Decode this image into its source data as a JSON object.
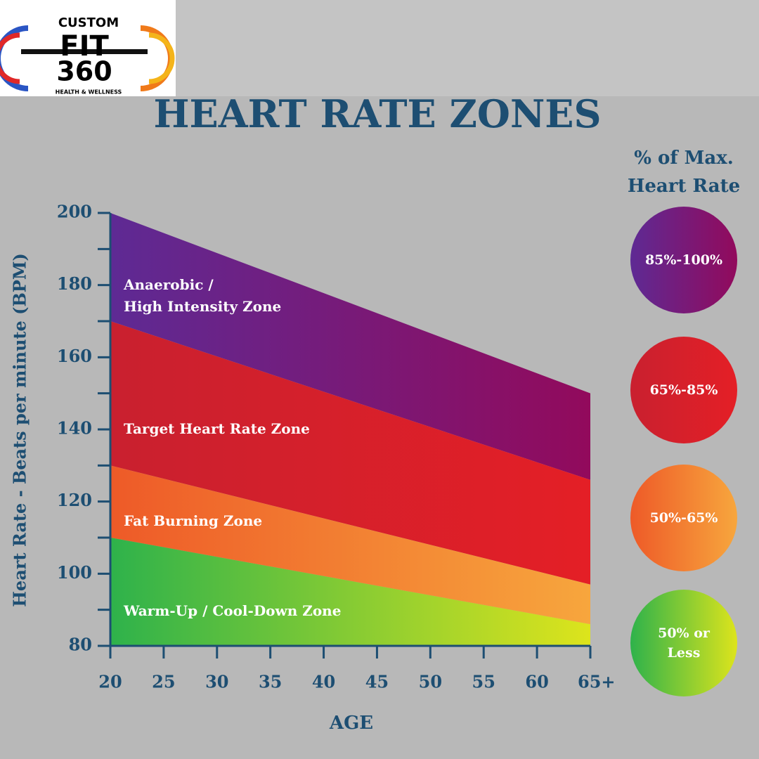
{
  "logo": {
    "top": "CUSTOM",
    "middle": "FIT",
    "bottom": "360",
    "tagline": "HEALTH & WELLNESS"
  },
  "chart_data": {
    "type": "area",
    "title": "HEART RATE ZONES",
    "y_label": "Heart Rate - Beats per minute (BPM)",
    "x_label": "AGE",
    "legend_title": "% of Max.\nHeart Rate",
    "x": [
      20,
      65
    ],
    "xlim": [
      20,
      65
    ],
    "xticks": [
      20,
      25,
      30,
      35,
      40,
      45,
      50,
      55,
      60,
      {
        "value": 65,
        "label": "65+"
      }
    ],
    "ylim": [
      80,
      200
    ],
    "yticks": [
      80,
      100,
      120,
      140,
      160,
      180,
      200
    ],
    "yticks_minor": [
      90,
      110,
      130,
      150,
      170,
      190
    ],
    "series": [
      {
        "name": "Anaerobic /\nHigh Intensity Zone",
        "range": "85%-100%",
        "colors": [
          "#5e2a94",
          "#920a5c"
        ],
        "values": [
          200,
          150
        ]
      },
      {
        "name": "Target Heart Rate Zone",
        "range": "65%-85%",
        "colors": [
          "#c9202f",
          "#e41f26"
        ],
        "values": [
          170,
          126
        ]
      },
      {
        "name": "Fat Burning Zone",
        "range": "50%-65%",
        "colors": [
          "#ee5a28",
          "#f7a63d"
        ],
        "values": [
          130,
          97
        ]
      },
      {
        "name": "Warm-Up / Cool-Down Zone",
        "range": "50% or\nLess",
        "colors": [
          "#2eb24b",
          "#dde41c"
        ],
        "values": [
          110,
          86
        ]
      }
    ]
  }
}
